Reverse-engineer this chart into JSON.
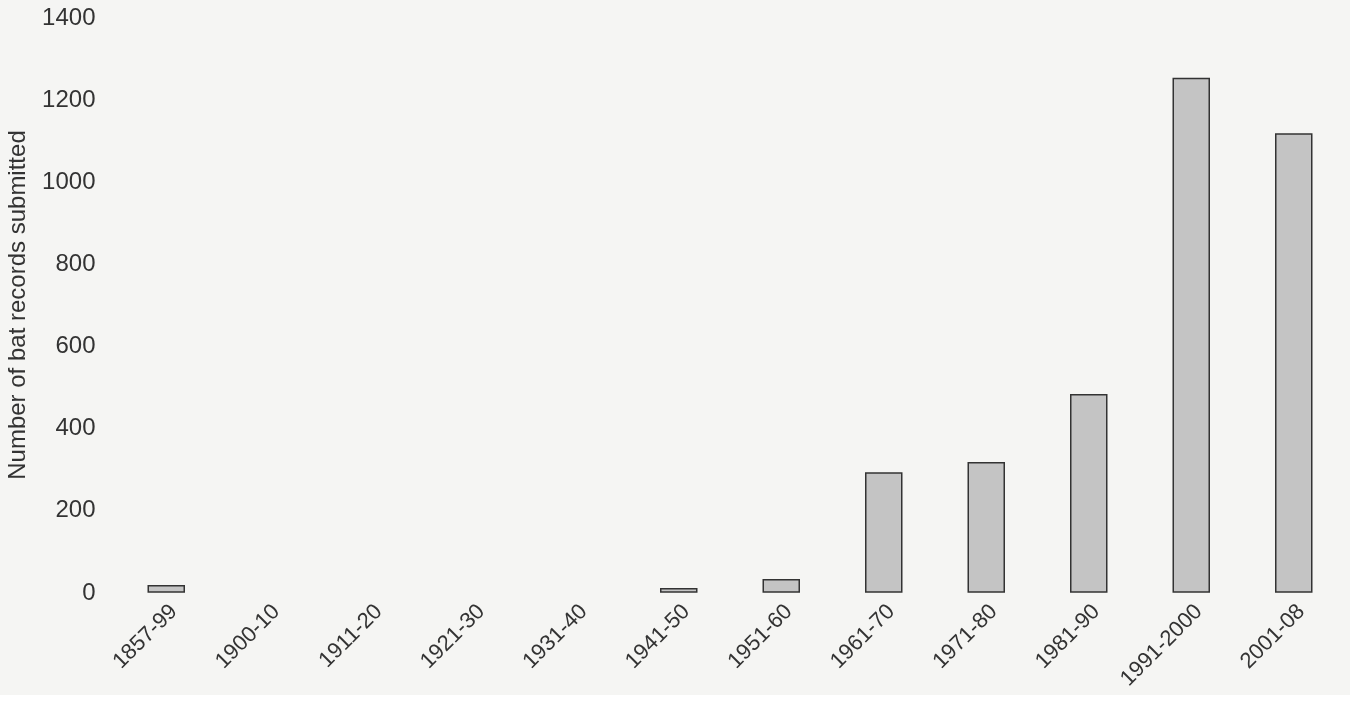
{
  "chart_data": {
    "type": "bar",
    "ylabel": "Number of bat records submitted",
    "categories": [
      "1857-99",
      "1900-10",
      "1911-20",
      "1921-30",
      "1931-40",
      "1941-50",
      "1951-60",
      "1961-70",
      "1971-80",
      "1981-90",
      "1991-2000",
      "2001-08"
    ],
    "values": [
      15,
      null,
      null,
      null,
      null,
      8,
      30,
      290,
      315,
      480,
      1250,
      1115
    ],
    "color": "#c4c4c4",
    "ylim": [
      0,
      1400
    ],
    "yticks": [
      0,
      200,
      400,
      600,
      800,
      1000,
      1200,
      1400
    ],
    "grid": false
  }
}
